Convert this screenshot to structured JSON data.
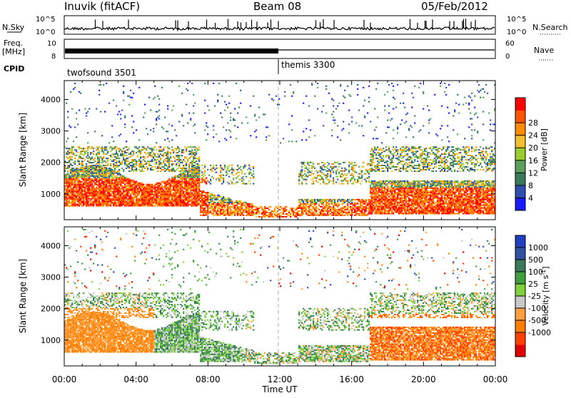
{
  "header": {
    "station": "Inuvik (fitACF)",
    "beam": "Beam 08",
    "date": "05/Feb/2012"
  },
  "labels": {
    "nsky": "N.Sky",
    "nsearch": "N.Search",
    "freq_top": "Freq.",
    "freq_bottom": "[MHz]",
    "nave": "Nave",
    "cpid": "CPID",
    "cpid_left": "twofsound 3501",
    "cpid_right": "themis 3300",
    "xlabel": "Time UT",
    "ylabel": "Slant Range [km]"
  },
  "ticks": {
    "nsky_top": "10^5",
    "nsky_bottom": "10^0",
    "freq_top": "10",
    "freq_bottom": "8",
    "nave_top": "60",
    "nave_bottom": "0"
  },
  "colors": {
    "power": [
      "#1a1aff",
      "#2f4fb0",
      "#3a7a5a",
      "#5aa05a",
      "#9acd32",
      "#f0c030",
      "#ff8c00",
      "#ff5500",
      "#ff0000"
    ],
    "velocity": [
      "#e00000",
      "#ff4000",
      "#ff8000",
      "#ffa040",
      "#c8c8c8",
      "#80d040",
      "#40a040",
      "#3a7a5a",
      "#3050a0",
      "#2040c0"
    ]
  },
  "chart_data": [
    {
      "type": "heatmap",
      "title": "",
      "xlabel": "Time UT",
      "ylabel": "Slant Range [km]",
      "x_ticks": [
        "00:00",
        "04:00",
        "08:00",
        "12:00",
        "16:00",
        "20:00",
        "00:00"
      ],
      "y_ticks": [
        1000,
        2000,
        3000,
        4000
      ],
      "xlim": [
        0,
        24
      ],
      "ylim": [
        180,
        4600
      ],
      "colorbar_label": "Power [dB]",
      "colorbar_ticks": [
        "4",
        "8",
        "12",
        "16",
        "20",
        "24",
        "28"
      ],
      "colorbar_range": [
        0,
        32
      ]
    },
    {
      "type": "heatmap",
      "title": "",
      "xlabel": "Time UT",
      "ylabel": "Slant Range [km]",
      "x_ticks": [
        "00:00",
        "04:00",
        "08:00",
        "12:00",
        "16:00",
        "20:00",
        "00:00"
      ],
      "y_ticks": [
        1000,
        2000,
        3000,
        4000
      ],
      "xlim": [
        0,
        24
      ],
      "ylim": [
        180,
        4600
      ],
      "colorbar_label": "Velocity [m s^-1]",
      "colorbar_ticks": [
        "1000",
        "500",
        "100",
        "25",
        "-25",
        "-100",
        "-500",
        "-1000"
      ]
    }
  ]
}
